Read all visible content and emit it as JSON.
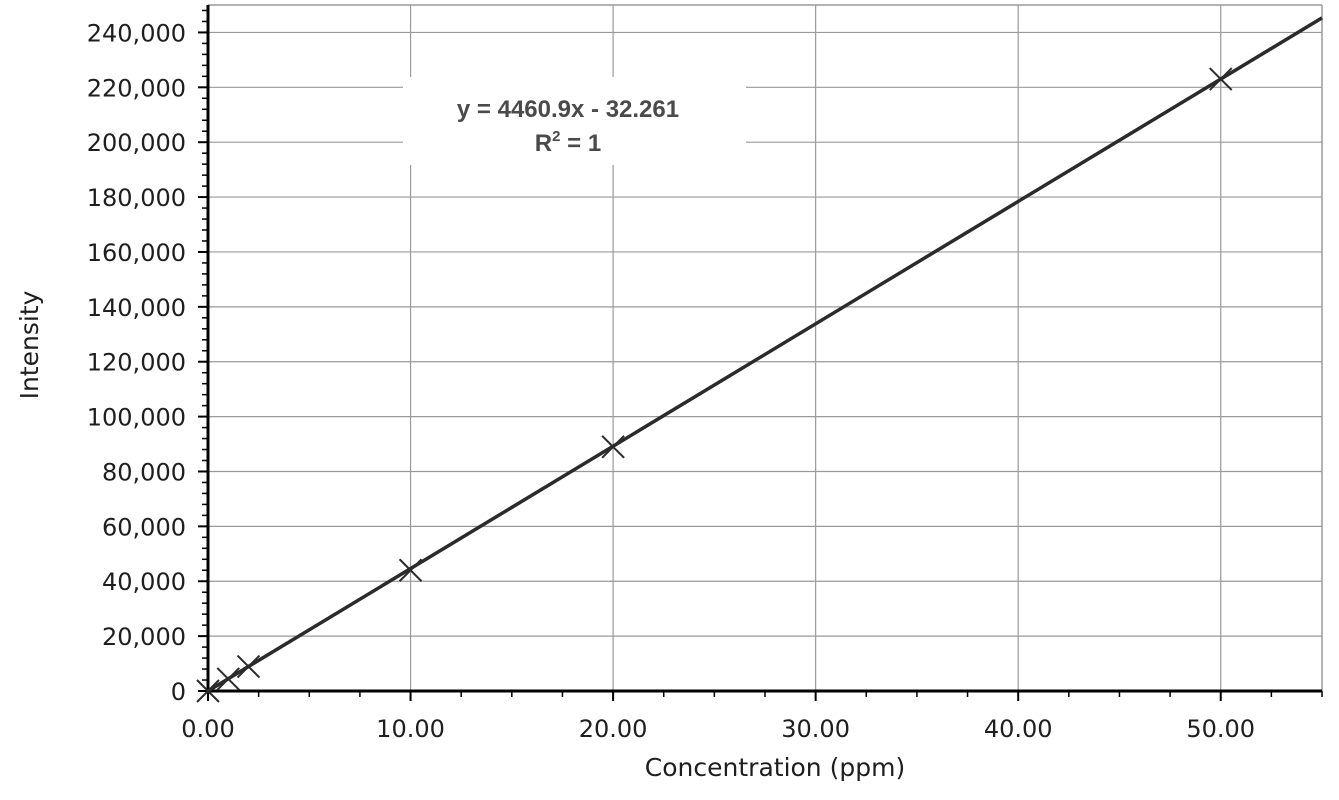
{
  "chart_data": {
    "type": "scatter",
    "xlabel": "Concentration (ppm)",
    "ylabel": "Intensity",
    "xlim": [
      0,
      55
    ],
    "ylim": [
      0,
      250000
    ],
    "grid": true,
    "x_ticks": [
      "0.00",
      "10.00",
      "20.00",
      "30.00",
      "40.00",
      "50.00"
    ],
    "y_ticks": [
      "0",
      "20,000",
      "40,000",
      "60,000",
      "80,000",
      "100,000",
      "120,000",
      "140,000",
      "160,000",
      "180,000",
      "200,000",
      "220,000",
      "240,000"
    ],
    "points": [
      {
        "x": 0,
        "y": 0
      },
      {
        "x": 1,
        "y": 4400
      },
      {
        "x": 2,
        "y": 8900
      },
      {
        "x": 10,
        "y": 44000
      },
      {
        "x": 20,
        "y": 89000
      },
      {
        "x": 50,
        "y": 223000
      }
    ],
    "trendline": {
      "slope": 4460.9,
      "intercept": -32.261,
      "x_range": [
        0,
        55
      ],
      "equation": "y = 4460.9x - 32.261",
      "r2_label": "R",
      "r2_exp": "2",
      "r2_value": " = 1"
    },
    "colors": {
      "line": "#2b2b2b",
      "grid": "#9a9a9a",
      "axis": "#000000",
      "background": "#ffffff"
    }
  }
}
